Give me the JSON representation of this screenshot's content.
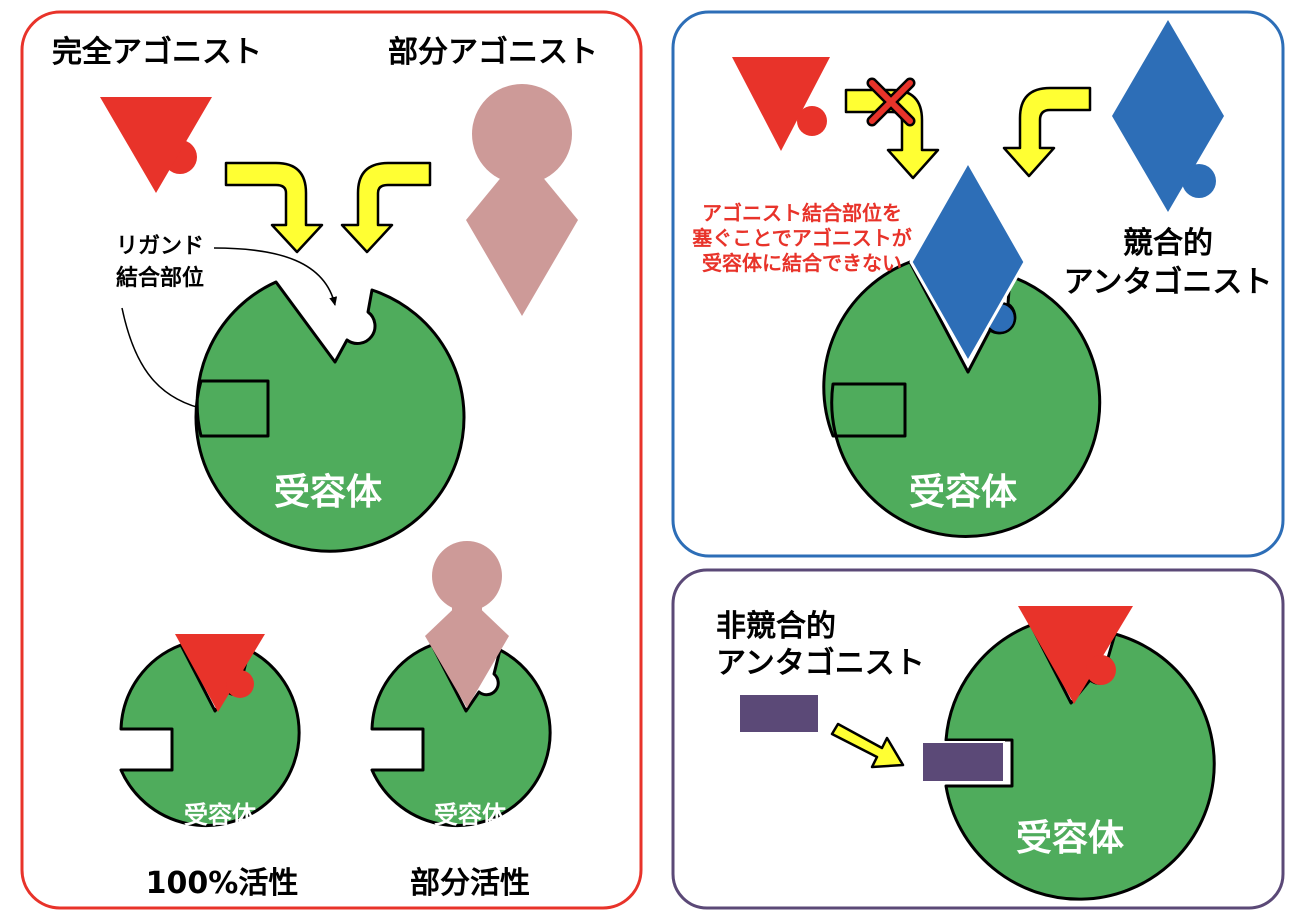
{
  "colors": {
    "full_agonist": "#e8332a",
    "partial_agonist": "#cd9a98",
    "competitive_antagonist": "#2d6eb7",
    "noncompetitive_antagonist": "#5b4977",
    "receptor": "#4fac5c",
    "arrow_fill": "#ffff33",
    "frame_agonist": "#e8332a",
    "frame_competitive": "#2d6eb7",
    "frame_noncompetitive": "#5b4977"
  },
  "agonist_panel": {
    "full_agonist_label": "完全アゴニスト",
    "partial_agonist_label": "部分アゴニスト",
    "ligand_site_line1": "リガンド",
    "ligand_site_line2": "結合部位",
    "receptor_label": "受容体",
    "full_receptor_label": "受容体",
    "partial_receptor_label": "受容体",
    "full_activity_label": "100%活性",
    "partial_activity_label": "部分活性"
  },
  "competitive_panel": {
    "note_line1": "アゴニスト結合部位を",
    "note_line2": "塞ぐことでアゴニストが",
    "note_line3": "受容体に結合できない",
    "antagonist_line1": "競合的",
    "antagonist_line2": "アンタゴニスト",
    "receptor_label": "受容体"
  },
  "noncompetitive_panel": {
    "antagonist_line1": "非競合的",
    "antagonist_line2": "アンタゴニスト",
    "receptor_label": "受容体"
  }
}
